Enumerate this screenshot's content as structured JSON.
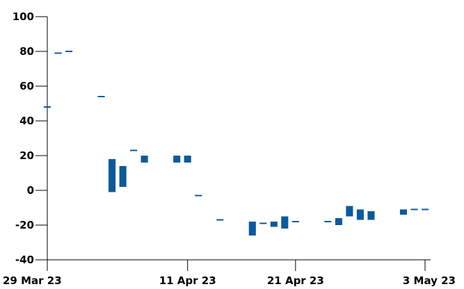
{
  "chart_data": {
    "type": "candlestick",
    "xlabel": "",
    "ylabel": "",
    "grid": false,
    "xlim": [
      "2023-03-29",
      "2023-05-03"
    ],
    "ylim": [
      -40,
      100
    ],
    "yticks": [
      {
        "value": -40,
        "label": "-40"
      },
      {
        "value": -20,
        "label": "-20"
      },
      {
        "value": 0,
        "label": "0"
      },
      {
        "value": 20,
        "label": "20"
      },
      {
        "value": 40,
        "label": "40"
      },
      {
        "value": 60,
        "label": "60"
      },
      {
        "value": 80,
        "label": "80"
      },
      {
        "value": 100,
        "label": "100"
      }
    ],
    "xticks": [
      {
        "date": "2023-03-29",
        "label": "29 Mar 23"
      },
      {
        "date": "2023-04-11",
        "label": "11 Apr 23"
      },
      {
        "date": "2023-04-21",
        "label": "21 Apr 23"
      },
      {
        "date": "2023-05-03",
        "label": "3 May 23"
      }
    ],
    "color": "#0a5a9c",
    "candles": [
      {
        "date": "2023-03-29",
        "open": 48,
        "close": 48
      },
      {
        "date": "2023-03-30",
        "open": 79,
        "close": 79
      },
      {
        "date": "2023-03-31",
        "open": 80,
        "close": 80
      },
      {
        "date": "2023-04-03",
        "open": 54,
        "close": 54
      },
      {
        "date": "2023-04-04",
        "open": 18,
        "close": -1
      },
      {
        "date": "2023-04-05",
        "open": 14,
        "close": 2
      },
      {
        "date": "2023-04-06",
        "open": 23,
        "close": 23
      },
      {
        "date": "2023-04-07",
        "open": 20,
        "close": 16
      },
      {
        "date": "2023-04-10",
        "open": 20,
        "close": 16
      },
      {
        "date": "2023-04-11",
        "open": 20,
        "close": 16
      },
      {
        "date": "2023-04-12",
        "open": -3,
        "close": -3
      },
      {
        "date": "2023-04-14",
        "open": -17,
        "close": -17
      },
      {
        "date": "2023-04-17",
        "open": -18,
        "close": -26
      },
      {
        "date": "2023-04-18",
        "open": -19,
        "close": -19
      },
      {
        "date": "2023-04-19",
        "open": -18,
        "close": -21
      },
      {
        "date": "2023-04-20",
        "open": -15,
        "close": -22
      },
      {
        "date": "2023-04-21",
        "open": -18,
        "close": -18
      },
      {
        "date": "2023-04-24",
        "open": -18,
        "close": -18
      },
      {
        "date": "2023-04-25",
        "open": -16,
        "close": -20
      },
      {
        "date": "2023-04-26",
        "open": -9,
        "close": -15
      },
      {
        "date": "2023-04-27",
        "open": -11,
        "close": -17
      },
      {
        "date": "2023-04-28",
        "open": -12,
        "close": -17
      },
      {
        "date": "2023-05-01",
        "open": -11,
        "close": -14
      },
      {
        "date": "2023-05-02",
        "open": -11,
        "close": -11
      },
      {
        "date": "2023-05-03",
        "open": -11,
        "close": -11
      }
    ]
  }
}
